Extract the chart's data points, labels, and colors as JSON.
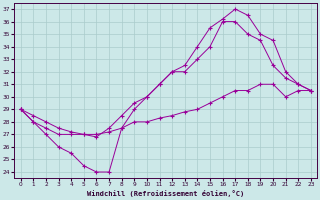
{
  "xlabel": "Windchill (Refroidissement éolien,°C)",
  "xlim": [
    0,
    23
  ],
  "ylim": [
    24,
    37
  ],
  "yticks": [
    24,
    25,
    26,
    27,
    28,
    29,
    30,
    31,
    32,
    33,
    34,
    35,
    36,
    37
  ],
  "xticks": [
    0,
    1,
    2,
    3,
    4,
    5,
    6,
    7,
    8,
    9,
    10,
    11,
    12,
    13,
    14,
    15,
    16,
    17,
    18,
    19,
    20,
    21,
    22,
    23
  ],
  "bg_color": "#cce8e8",
  "grid_color": "#aacccc",
  "line_color": "#990099",
  "line1_x": [
    0,
    1,
    2,
    3,
    4,
    5,
    6,
    7,
    8,
    9,
    10,
    11,
    12,
    13,
    14,
    15,
    16,
    17,
    18,
    19,
    20,
    21,
    22,
    23
  ],
  "line1_y": [
    29,
    28,
    27,
    26,
    25.5,
    24.5,
    24,
    24,
    27.5,
    29,
    30,
    31,
    32,
    32.5,
    34,
    35.5,
    36.2,
    37,
    36.5,
    35,
    34.5,
    32,
    31,
    30.5
  ],
  "line2_x": [
    0,
    1,
    2,
    3,
    4,
    5,
    6,
    7,
    8,
    9,
    10,
    11,
    12,
    13,
    14,
    15,
    16,
    17,
    18,
    19,
    20,
    21,
    22,
    23
  ],
  "line2_y": [
    29,
    28,
    27.5,
    27,
    27,
    27,
    26.8,
    27.5,
    28.5,
    29.5,
    30,
    31,
    32,
    32,
    33,
    34,
    36,
    36,
    35,
    34.5,
    32.5,
    31.5,
    31,
    30.5
  ],
  "line3_x": [
    0,
    1,
    2,
    3,
    4,
    5,
    6,
    7,
    8,
    9,
    10,
    11,
    12,
    13,
    14,
    15,
    16,
    17,
    18,
    19,
    20,
    21,
    22,
    23
  ],
  "line3_y": [
    29,
    28.5,
    28,
    27.5,
    27.2,
    27,
    27,
    27.2,
    27.5,
    28,
    28,
    28.3,
    28.5,
    28.8,
    29,
    29.5,
    30,
    30.5,
    30.5,
    31,
    31,
    30,
    30.5,
    30.5
  ]
}
